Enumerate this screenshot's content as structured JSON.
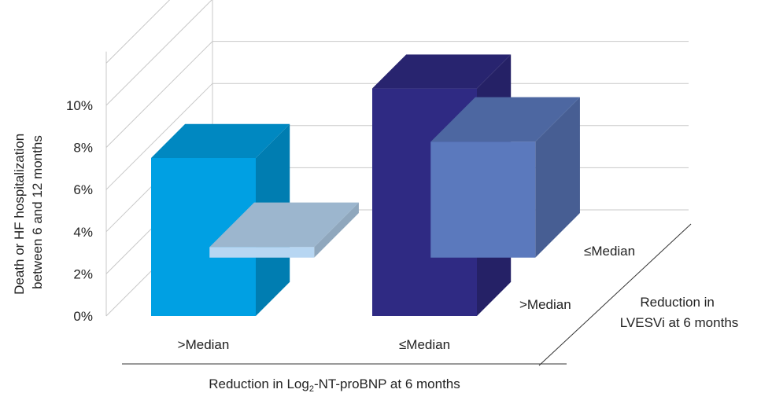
{
  "chart_data": {
    "type": "bar",
    "three_d": true,
    "ylabel": [
      "Death or HF hospitalization",
      "between 6 and 12 months"
    ],
    "xlabel": {
      "prefix": "Reduction in Log",
      "subscript": "2",
      "suffix": "-NT-proBNP at 6 months"
    },
    "zlabel": [
      "Reduction in",
      "LVESVi at 6 months"
    ],
    "categories": [
      ">Median",
      "≤Median"
    ],
    "depth_categories": [
      ">Median",
      "≤Median"
    ],
    "yticks": [
      "0%",
      "2%",
      "4%",
      "6%",
      "8%",
      "10%"
    ],
    "ylim": [
      0,
      10
    ],
    "grid": true,
    "legend": "none",
    "series": [
      {
        "values": [
          0.5,
          5.5
        ],
        "colors": [
          "#b7d6f2",
          "#5b79bd"
        ]
      },
      {
        "values": [
          7.5,
          10.8
        ],
        "colors": [
          "#00a0e3",
          "#2f2a83"
        ]
      }
    ]
  }
}
